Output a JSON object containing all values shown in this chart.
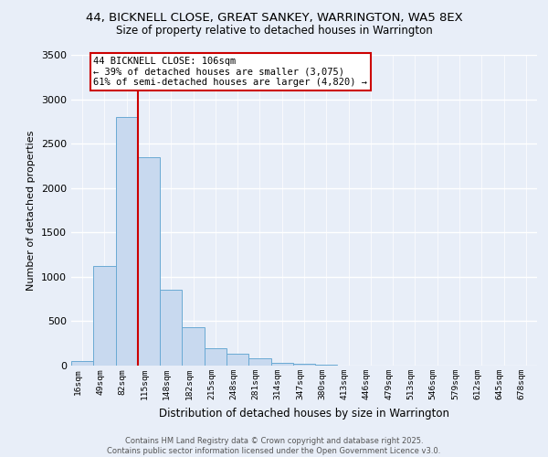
{
  "title_line1": "44, BICKNELL CLOSE, GREAT SANKEY, WARRINGTON, WA5 8EX",
  "title_line2": "Size of property relative to detached houses in Warrington",
  "xlabel": "Distribution of detached houses by size in Warrington",
  "ylabel": "Number of detached properties",
  "bar_color": "#c8d9ef",
  "bar_edge_color": "#6aaad4",
  "categories": [
    "16sqm",
    "49sqm",
    "82sqm",
    "115sqm",
    "148sqm",
    "182sqm",
    "215sqm",
    "248sqm",
    "281sqm",
    "314sqm",
    "347sqm",
    "380sqm",
    "413sqm",
    "446sqm",
    "479sqm",
    "513sqm",
    "546sqm",
    "579sqm",
    "612sqm",
    "645sqm",
    "678sqm"
  ],
  "values": [
    50,
    1120,
    2800,
    2350,
    850,
    430,
    200,
    130,
    80,
    30,
    20,
    10,
    5,
    5,
    5,
    5,
    5,
    5,
    0,
    0,
    0
  ],
  "ylim": [
    0,
    3500
  ],
  "yticks": [
    0,
    500,
    1000,
    1500,
    2000,
    2500,
    3000,
    3500
  ],
  "property_line_x": 2.5,
  "annotation_title": "44 BICKNELL CLOSE: 106sqm",
  "annotation_line2": "← 39% of detached houses are smaller (3,075)",
  "annotation_line3": "61% of semi-detached houses are larger (4,820) →",
  "annotation_box_color": "#ffffff",
  "annotation_box_edge": "#cc0000",
  "line_color": "#cc0000",
  "background_color": "#e8eef8",
  "grid_color": "#ffffff",
  "footer_line1": "Contains HM Land Registry data © Crown copyright and database right 2025.",
  "footer_line2": "Contains public sector information licensed under the Open Government Licence v3.0."
}
